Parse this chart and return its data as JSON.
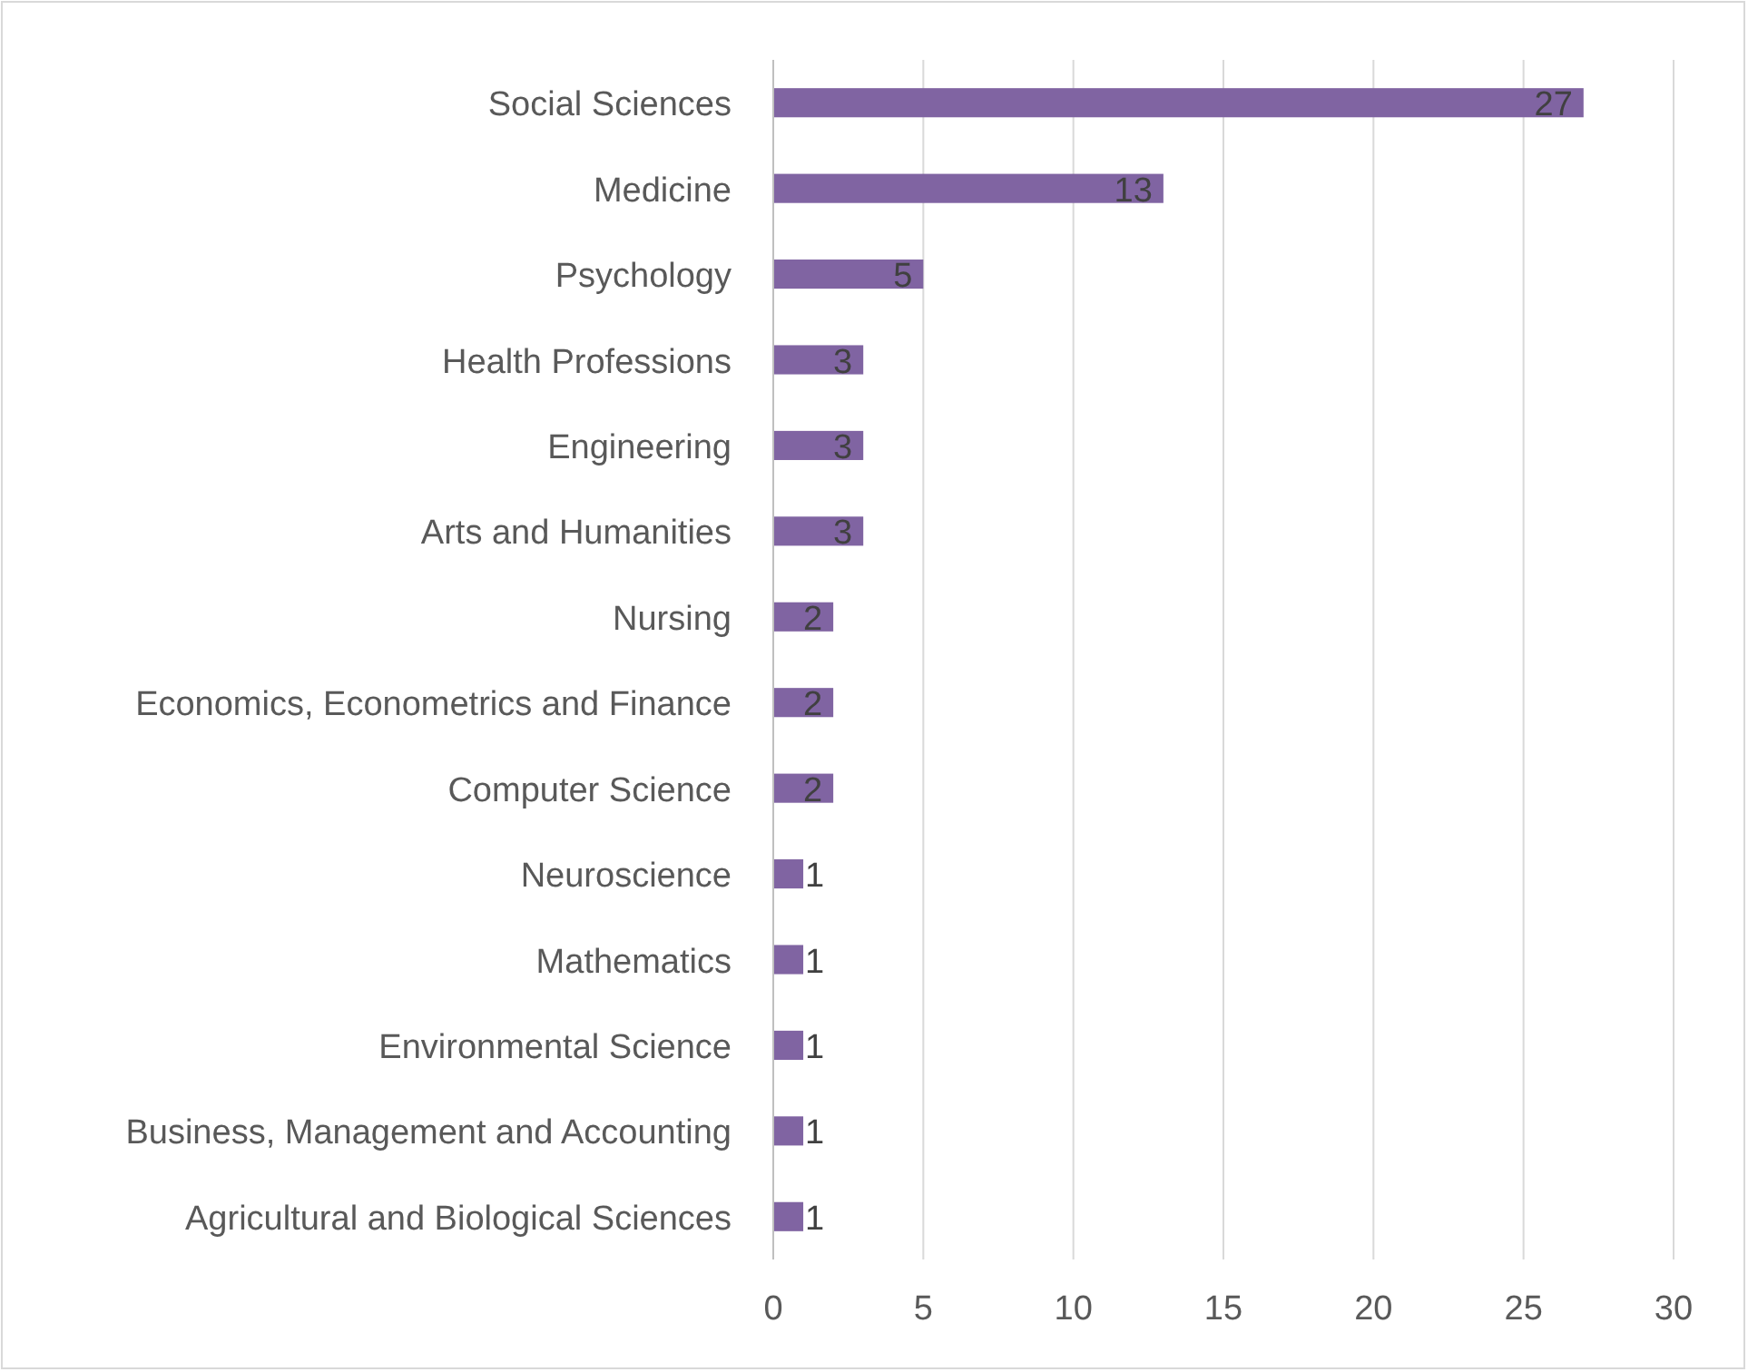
{
  "chart_data": {
    "type": "bar",
    "orientation": "horizontal",
    "categories": [
      "Social Sciences",
      "Medicine",
      "Psychology",
      "Health Professions",
      "Engineering",
      "Arts and Humanities",
      "Nursing",
      "Economics, Econometrics and Finance",
      "Computer Science",
      "Neuroscience",
      "Mathematics",
      "Environmental Science",
      "Business, Management and Accounting",
      "Agricultural and Biological Sciences"
    ],
    "values": [
      27,
      13,
      5,
      3,
      3,
      3,
      2,
      2,
      2,
      1,
      1,
      1,
      1,
      1
    ],
    "color": "#8064a2",
    "xlim": [
      0,
      30
    ],
    "xticks": [
      0,
      5,
      10,
      15,
      20,
      25,
      30
    ],
    "grid": "x",
    "data_labels": true
  }
}
